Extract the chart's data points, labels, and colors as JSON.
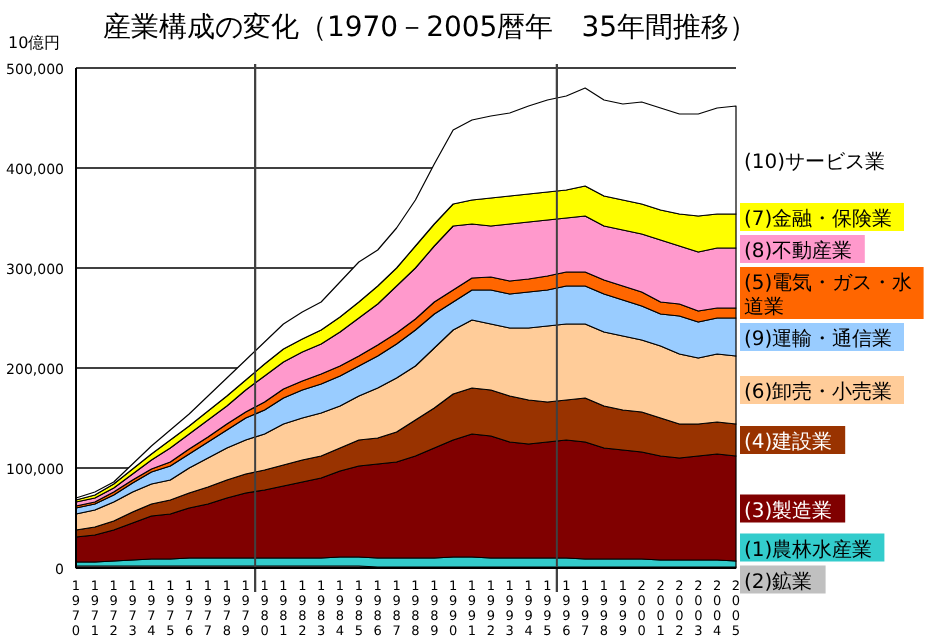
{
  "chart_data": {
    "type": "area",
    "title": "産業構成の変化（1970－2005暦年　35年間推移）",
    "ylabel": "10億円",
    "stacked": true,
    "grid": "y",
    "legend": "right",
    "x": [
      1970,
      1971,
      1972,
      1973,
      1974,
      1975,
      1976,
      1977,
      1978,
      1979,
      1980,
      1981,
      1982,
      1983,
      1984,
      1985,
      1986,
      1987,
      1988,
      1989,
      1990,
      1991,
      1992,
      1993,
      1994,
      1995,
      1996,
      1997,
      1998,
      1999,
      2000,
      2001,
      2002,
      2003,
      2004,
      2005
    ],
    "xlim": [
      1970,
      2005
    ],
    "xticks": [
      1970,
      1971,
      1972,
      1973,
      1974,
      1975,
      1976,
      1977,
      1978,
      1979,
      1980,
      1981,
      1982,
      1983,
      1984,
      1985,
      1986,
      1987,
      1988,
      1989,
      1990,
      1991,
      1992,
      1993,
      1994,
      1995,
      1996,
      1997,
      1998,
      1999,
      2000,
      2001,
      2002,
      2003,
      2004,
      2005
    ],
    "ylim": [
      0,
      500000
    ],
    "yticks": [
      0,
      {
        "value": 100000,
        "label": "100,000"
      },
      {
        "value": 200000,
        "label": "200,000"
      },
      {
        "value": 300000,
        "label": "300,000"
      },
      {
        "value": 400000,
        "label": "400,000"
      },
      {
        "value": 500000,
        "label": "500,000"
      }
    ],
    "ref_lines": [
      {
        "axis": "x",
        "value": 1979.5,
        "color": "#404040"
      },
      {
        "axis": "x",
        "value": 1995.5,
        "color": "#404040"
      }
    ],
    "series": [
      {
        "name": "(2)鉱業",
        "color": "#c0c0c0",
        "values": [
          2000,
          2000,
          2000,
          2000,
          2000,
          2000,
          2000,
          2000,
          2000,
          2000,
          2000,
          2000,
          2000,
          2000,
          2000,
          2000,
          1000,
          1000,
          1000,
          1000,
          1000,
          1000,
          1000,
          1000,
          1000,
          1000,
          1000,
          1000,
          1000,
          1000,
          1000,
          1000,
          1000,
          1000,
          1000,
          1000
        ]
      },
      {
        "name": "(1)農林水産業",
        "color": "#33cccc",
        "values": [
          4000,
          4000,
          5000,
          6000,
          7000,
          7000,
          8000,
          8000,
          8000,
          8000,
          8000,
          8000,
          8000,
          8000,
          9000,
          9000,
          9000,
          9000,
          9000,
          9000,
          10000,
          10000,
          9000,
          9000,
          9000,
          9000,
          9000,
          8000,
          8000,
          8000,
          8000,
          7000,
          7000,
          7000,
          7000,
          6000
        ]
      },
      {
        "name": "(3)製造業",
        "color": "#800000",
        "values": [
          25000,
          27000,
          31000,
          37000,
          43000,
          45000,
          50000,
          54000,
          60000,
          65000,
          68000,
          72000,
          76000,
          80000,
          86000,
          91000,
          94000,
          96000,
          102000,
          110000,
          117000,
          123000,
          122000,
          116000,
          114000,
          116000,
          118000,
          117000,
          111000,
          109000,
          107000,
          104000,
          102000,
          104000,
          106000,
          105000
        ]
      },
      {
        "name": "(4)建設業",
        "color": "#993300",
        "values": [
          7000,
          8000,
          9000,
          11000,
          12000,
          14000,
          15000,
          17000,
          18000,
          19000,
          20000,
          21000,
          22000,
          22000,
          23000,
          26000,
          26000,
          30000,
          36000,
          40000,
          46000,
          46000,
          46000,
          46000,
          44000,
          40000,
          40000,
          44000,
          42000,
          40000,
          40000,
          38000,
          34000,
          32000,
          32000,
          32000
        ]
      },
      {
        "name": "(6)卸売・小売業",
        "color": "#ffcc99",
        "values": [
          16000,
          17000,
          19000,
          20000,
          20000,
          20000,
          25000,
          29000,
          32000,
          34000,
          36000,
          41000,
          42000,
          43000,
          42000,
          44000,
          50000,
          54000,
          54000,
          60000,
          64000,
          68000,
          66000,
          68000,
          72000,
          76000,
          76000,
          74000,
          74000,
          74000,
          72000,
          72000,
          70000,
          66000,
          68000,
          68000
        ]
      },
      {
        "name": "(9)運輸・通信業",
        "color": "#99ccff",
        "values": [
          6000,
          6000,
          7000,
          9000,
          12000,
          14000,
          14000,
          16000,
          18000,
          22000,
          24000,
          26000,
          28000,
          29000,
          30000,
          30000,
          32000,
          34000,
          36000,
          34000,
          28000,
          30000,
          34000,
          34000,
          36000,
          36000,
          38000,
          38000,
          38000,
          36000,
          34000,
          32000,
          38000,
          36000,
          36000,
          38000
        ]
      },
      {
        "name": "(5)電気・ガス・水道業",
        "color": "#ff6600",
        "values": [
          2000,
          2000,
          3000,
          3000,
          3000,
          4000,
          5000,
          5000,
          6000,
          6000,
          8000,
          9000,
          9000,
          10000,
          10000,
          10000,
          11000,
          11000,
          11000,
          12000,
          12000,
          12000,
          13000,
          13000,
          13000,
          14000,
          14000,
          14000,
          14000,
          14000,
          14000,
          12000,
          12000,
          11000,
          10000,
          10000
        ]
      },
      {
        "name": "(8)不動産業",
        "color": "#ff99cc",
        "values": [
          4000,
          4000,
          4000,
          6000,
          9000,
          14000,
          15000,
          17000,
          18000,
          22000,
          26000,
          27000,
          29000,
          30000,
          34000,
          38000,
          41000,
          47000,
          51000,
          56000,
          64000,
          54000,
          51000,
          57000,
          57000,
          56000,
          54000,
          56000,
          54000,
          56000,
          58000,
          62000,
          58000,
          59000,
          60000,
          60000
        ]
      },
      {
        "name": "(7)金融・保険業",
        "color": "#ffff00",
        "values": [
          2000,
          3000,
          4000,
          5000,
          6000,
          8000,
          8000,
          9000,
          10000,
          10000,
          12000,
          13000,
          13000,
          14000,
          15000,
          16000,
          18000,
          18000,
          22000,
          22000,
          22000,
          24000,
          28000,
          28000,
          28000,
          28000,
          28000,
          30000,
          30000,
          30000,
          30000,
          30000,
          32000,
          36000,
          34000,
          34000
        ]
      },
      {
        "name": "(10)サービス業",
        "color": "#ffffff",
        "values": [
          2000,
          3000,
          2000,
          5000,
          8000,
          10000,
          12000,
          15000,
          18000,
          20000,
          22000,
          25000,
          27000,
          28000,
          35000,
          40000,
          36000,
          40000,
          46000,
          60000,
          74000,
          80000,
          82000,
          83000,
          88000,
          92000,
          94000,
          98000,
          96000,
          96000,
          102000,
          102000,
          100000,
          102000,
          106000,
          108000
        ]
      }
    ]
  }
}
